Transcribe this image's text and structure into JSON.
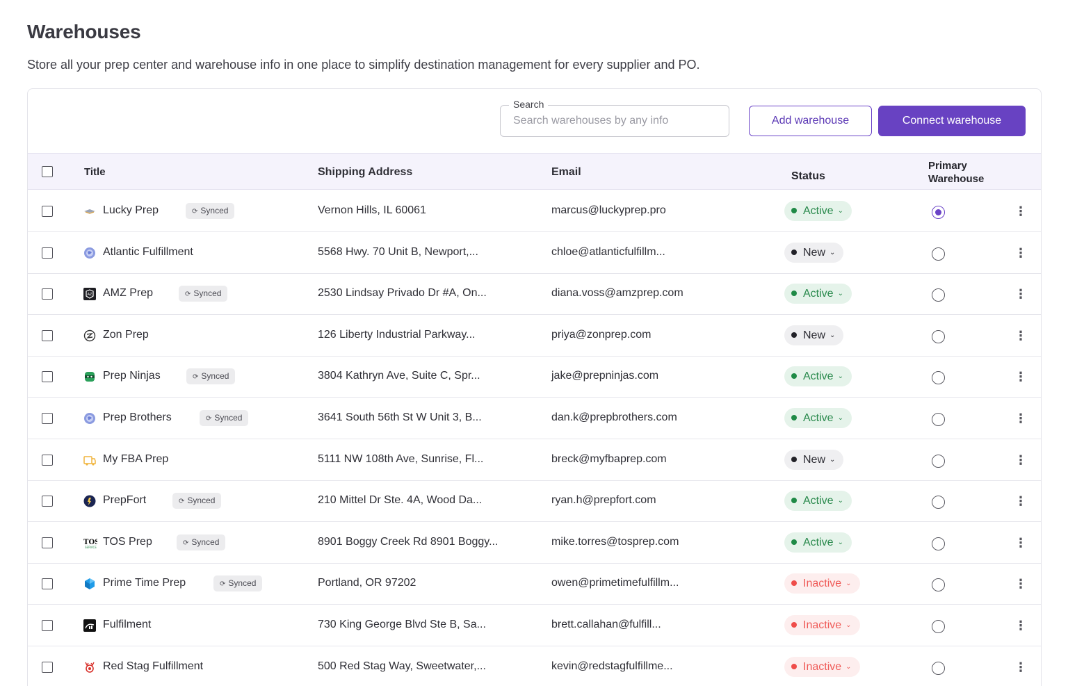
{
  "header": {
    "title": "Warehouses",
    "subtitle": "Store all your prep center and warehouse info in one place to simplify destination management for every supplier and PO."
  },
  "search": {
    "label": "Search",
    "placeholder": "Search warehouses by any info"
  },
  "actions": {
    "add_label": "Add warehouse",
    "connect_label": "Connect warehouse"
  },
  "columns": {
    "title": "Title",
    "address": "Shipping Address",
    "email": "Email",
    "status": "Status",
    "primary": "Primary Warehouse"
  },
  "synced_label": "Synced",
  "status_labels": {
    "active": "Active",
    "new": "New",
    "inactive": "Inactive"
  },
  "colors": {
    "accent": "#6842c2",
    "active": "#1f8a46",
    "inactive": "#ef4d4a",
    "new": "#222228"
  },
  "rows": [
    {
      "title": "Lucky Prep",
      "synced": true,
      "address": "Vernon Hills, IL 60061",
      "email": "marcus@luckyprep.pro",
      "status": "Active",
      "status_key": "active",
      "primary": true,
      "logo": "lucky-prep-logo"
    },
    {
      "title": "Atlantic Fulfillment",
      "synced": false,
      "address": "5568 Hwy. 70 Unit B, Newport,...",
      "email": "chloe@atlanticfulfillm...",
      "status": "New",
      "status_key": "new",
      "primary": false,
      "logo": "globe-logo"
    },
    {
      "title": "AMZ Prep",
      "synced": true,
      "address": "2530 Lindsay Privado Dr #A, On...",
      "email": "diana.voss@amzprep.com",
      "status": "Active",
      "status_key": "active",
      "primary": false,
      "logo": "amz-prep-logo"
    },
    {
      "title": "Zon Prep",
      "synced": false,
      "address": "126 Liberty Industrial Parkway...",
      "email": "priya@zonprep.com",
      "status": "New",
      "status_key": "new",
      "primary": false,
      "logo": "zon-prep-logo"
    },
    {
      "title": "Prep Ninjas",
      "synced": true,
      "address": "3804 Kathryn Ave, Suite C, Spr...",
      "email": "jake@prepninjas.com",
      "status": "Active",
      "status_key": "active",
      "primary": false,
      "logo": "prep-ninjas-logo"
    },
    {
      "title": "Prep Brothers",
      "synced": true,
      "address": "3641 South 56th St W Unit 3, B...",
      "email": "dan.k@prepbrothers.com",
      "status": "Active",
      "status_key": "active",
      "primary": false,
      "logo": "globe-logo"
    },
    {
      "title": "My FBA Prep",
      "synced": false,
      "address": "5111 NW 108th Ave, Sunrise, Fl...",
      "email": "breck@myfbaprep.com",
      "status": "New",
      "status_key": "new",
      "primary": false,
      "logo": "my-fba-prep-logo"
    },
    {
      "title": "PrepFort",
      "synced": true,
      "address": "210 Mittel Dr Ste. 4A, Wood Da...",
      "email": "ryan.h@prepfort.com",
      "status": "Active",
      "status_key": "active",
      "primary": false,
      "logo": "prepfort-logo"
    },
    {
      "title": "TOS Prep",
      "synced": true,
      "address": "8901 Boggy Creek Rd 8901 Boggy...",
      "email": "mike.torres@tosprep.com",
      "status": "Active",
      "status_key": "active",
      "primary": false,
      "logo": "tos-prep-logo"
    },
    {
      "title": "Prime Time Prep",
      "synced": true,
      "address": "Portland, OR 97202",
      "email": "owen@primetimefulfillm...",
      "status": "Inactive",
      "status_key": "inactive",
      "primary": false,
      "logo": "prime-time-prep-logo"
    },
    {
      "title": "Fulfilment",
      "synced": false,
      "address": "730 King George Blvd Ste B, Sa...",
      "email": "brett.callahan@fulfill...",
      "status": "Inactive",
      "status_key": "inactive",
      "primary": false,
      "logo": "fulfilment-logo"
    },
    {
      "title": "Red Stag Fulfillment",
      "synced": false,
      "address": "500 Red Stag Way, Sweetwater,...",
      "email": "kevin@redstagfulfillme...",
      "status": "Inactive",
      "status_key": "inactive",
      "primary": false,
      "logo": "red-stag-logo"
    }
  ]
}
